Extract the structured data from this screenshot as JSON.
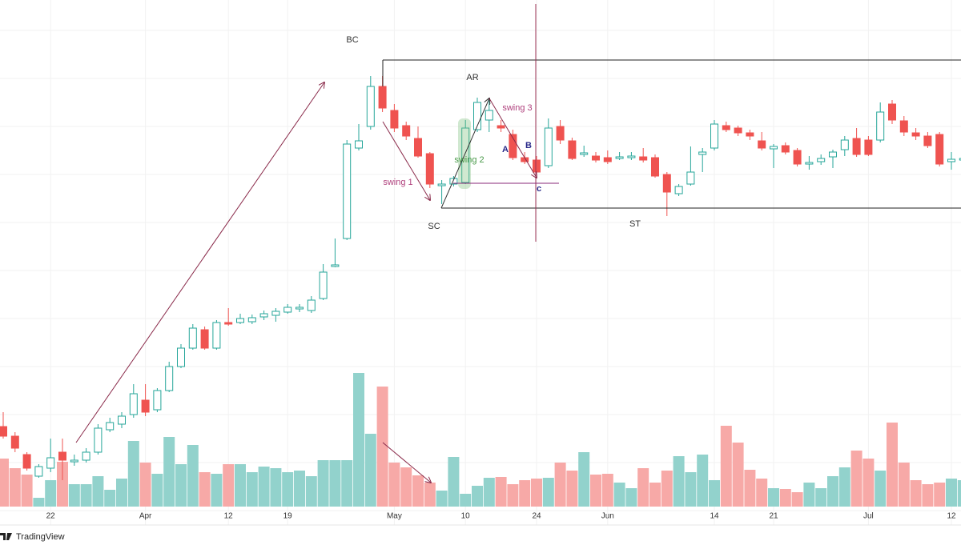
{
  "chart_data": {
    "type": "candlestick",
    "categories": [
      null,
      null,
      null,
      null,
      "22",
      null,
      null,
      null,
      null,
      null,
      null,
      null,
      "Apr",
      null,
      null,
      null,
      null,
      null,
      null,
      "12",
      null,
      null,
      null,
      null,
      "19",
      null,
      null,
      null,
      null,
      null,
      null,
      null,
      null,
      "May",
      null,
      null,
      null,
      null,
      null,
      "10",
      null,
      null,
      null,
      null,
      null,
      "24",
      null,
      null,
      null,
      null,
      null,
      "Jun",
      null,
      null,
      null,
      null,
      null,
      null,
      null,
      null,
      "14",
      null,
      null,
      null,
      null,
      "21",
      null,
      null,
      null,
      null,
      null,
      null,
      null,
      "Jul",
      null,
      null,
      null,
      null,
      null,
      null,
      "12",
      null
    ],
    "open": [
      117,
      105,
      82,
      55,
      65,
      85,
      73,
      75,
      85,
      113,
      120,
      132,
      150,
      138,
      162,
      192,
      215,
      238,
      215,
      247,
      247,
      248,
      254,
      256,
      260,
      264,
      262,
      277,
      317,
      352,
      465,
      492,
      542,
      512,
      493,
      477,
      458,
      418,
      420,
      422,
      488,
      500,
      493,
      482,
      453,
      450,
      443,
      492,
      474,
      457,
      455,
      453,
      452,
      453,
      454,
      453,
      432,
      408,
      420,
      457,
      465,
      493,
      490,
      484,
      474,
      464,
      468,
      462,
      445,
      448,
      454,
      463,
      477,
      475,
      475,
      520,
      499,
      484,
      480,
      482,
      448,
      450
    ],
    "high": [
      135,
      110,
      85,
      70,
      102,
      102,
      82,
      90,
      120,
      128,
      135,
      170,
      170,
      165,
      198,
      220,
      245,
      242,
      250,
      265,
      258,
      257,
      262,
      265,
      270,
      270,
      280,
      320,
      352,
      475,
      495,
      555,
      555,
      520,
      498,
      492,
      460,
      425,
      430,
      500,
      528,
      525,
      500,
      488,
      460,
      455,
      502,
      500,
      478,
      468,
      460,
      462,
      460,
      460,
      465,
      457,
      435,
      420,
      467,
      465,
      500,
      498,
      493,
      488,
      485,
      470,
      472,
      465,
      455,
      457,
      463,
      480,
      490,
      480,
      522,
      525,
      505,
      490,
      485,
      485,
      460,
      455
    ],
    "low": [
      102,
      85,
      62,
      53,
      60,
      50,
      68,
      72,
      82,
      110,
      115,
      128,
      130,
      135,
      160,
      190,
      213,
      213,
      213,
      243,
      245,
      245,
      250,
      248,
      258,
      260,
      259,
      275,
      316,
      350,
      462,
      488,
      510,
      485,
      475,
      453,
      415,
      395,
      417,
      420,
      485,
      485,
      485,
      450,
      445,
      432,
      440,
      470,
      450,
      454,
      447,
      445,
      450,
      450,
      447,
      428,
      380,
      405,
      418,
      435,
      462,
      485,
      480,
      475,
      462,
      440,
      457,
      442,
      438,
      444,
      440,
      455,
      454,
      455,
      472,
      495,
      480,
      475,
      465,
      442,
      438,
      445
    ],
    "close": [
      105,
      90,
      65,
      67,
      78,
      75,
      75,
      85,
      115,
      122,
      130,
      158,
      135,
      162,
      192,
      215,
      240,
      215,
      247,
      245,
      252,
      253,
      258,
      261,
      266,
      266,
      275,
      310,
      319,
      470,
      474,
      542,
      515,
      490,
      480,
      455,
      420,
      420,
      427,
      490,
      522,
      512,
      490,
      453,
      448,
      435,
      490,
      475,
      452,
      459,
      450,
      448,
      454,
      455,
      450,
      430,
      410,
      417,
      435,
      460,
      495,
      488,
      484,
      480,
      465,
      467,
      460,
      445,
      447,
      452,
      460,
      475,
      457,
      457,
      510,
      500,
      485,
      480,
      468,
      445,
      451,
      452
    ],
    "volume": [
      60,
      48,
      40,
      11,
      33,
      56,
      28,
      28,
      38,
      21,
      35,
      82,
      55,
      41,
      87,
      53,
      77,
      43,
      41,
      53,
      53,
      43,
      50,
      48,
      43,
      45,
      38,
      58,
      58,
      58,
      167,
      91,
      150,
      55,
      49,
      39,
      30,
      20,
      62,
      16,
      26,
      36,
      37,
      28,
      33,
      35,
      36,
      55,
      45,
      68,
      40,
      41,
      30,
      23,
      48,
      30,
      45,
      63,
      43,
      65,
      33,
      101,
      80,
      46,
      35,
      23,
      22,
      18,
      30,
      23,
      38,
      49,
      70,
      60,
      45,
      105,
      55,
      33,
      28,
      30,
      35,
      33
    ],
    "ylim": [
      0,
      650
    ],
    "volume_ylim": [
      0,
      400
    ],
    "up_color": "#26a69a",
    "down_color": "#ef5350",
    "up_volume_color": "#92d2cc",
    "down_volume_color": "#f7a9a7",
    "grid": true,
    "annotations": [
      "BC",
      "AR",
      "SC",
      "ST",
      "swing 1",
      "swing 2",
      "swing 3",
      "A",
      "B",
      "c"
    ],
    "watermark": "TradingView"
  }
}
